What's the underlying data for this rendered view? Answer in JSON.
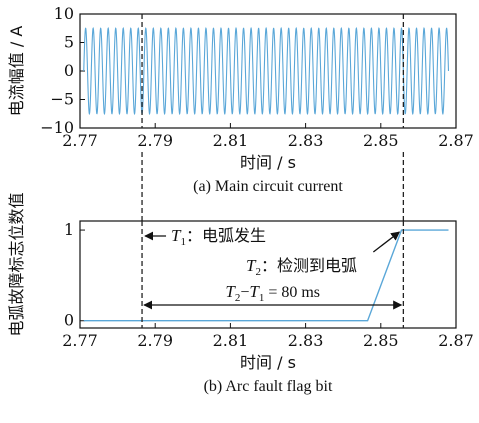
{
  "colors": {
    "signal": "#5aa7d8",
    "axis": "#111111",
    "guide": "#222222"
  },
  "chart_data": [
    {
      "type": "line",
      "caption": "(a)  Main circuit current",
      "xlabel": "时间 / s",
      "ylabel": "电流幅值 / A",
      "xlim": [
        2.77,
        2.87
      ],
      "ylim": [
        -10,
        10
      ],
      "xticks": [
        2.77,
        2.79,
        2.81,
        2.83,
        2.85,
        2.87
      ],
      "xtick_labels": [
        "2.77",
        "2.79",
        "2.81",
        "2.83",
        "2.85",
        "2.87"
      ],
      "yticks": [
        -10,
        -5,
        0,
        5,
        10
      ],
      "ytick_labels": [
        "−10",
        "−5",
        "0",
        "5",
        "10"
      ],
      "signal": {
        "form": "sine",
        "frequency_hz": 500,
        "amplitude": 7.5,
        "x_start": 2.771,
        "x_end": 2.868
      },
      "series": [
        {
          "values": [],
          "x": []
        }
      ]
    },
    {
      "type": "line",
      "caption": "(b)  Arc fault flag bit",
      "xlabel": "时间 / s",
      "ylabel": "电弧故障标志位数值",
      "xlim": [
        2.77,
        2.87
      ],
      "ylim": [
        -0.08,
        1.1
      ],
      "xticks": [
        2.77,
        2.79,
        2.81,
        2.83,
        2.85,
        2.87
      ],
      "xtick_labels": [
        "2.77",
        "2.79",
        "2.81",
        "2.83",
        "2.85",
        "2.87"
      ],
      "yticks": [
        0,
        1
      ],
      "ytick_labels": [
        "0",
        "1"
      ],
      "series": [
        {
          "x": [
            2.771,
            2.8465,
            2.8555,
            2.868
          ],
          "values": [
            0,
            0,
            1,
            1
          ]
        }
      ],
      "annotations": {
        "t1": {
          "sym": "T",
          "sub": "1",
          "text": "：电弧发生",
          "x": 2.7865
        },
        "t2": {
          "sym": "T",
          "sub": "2",
          "text": "：检测到电弧",
          "x": 2.856
        },
        "interval": {
          "sym_a": "T",
          "sub_a": "2",
          "dash": "−",
          "sym_b": "T",
          "sub_b": "1",
          "text": " = 80 ms"
        }
      }
    }
  ]
}
